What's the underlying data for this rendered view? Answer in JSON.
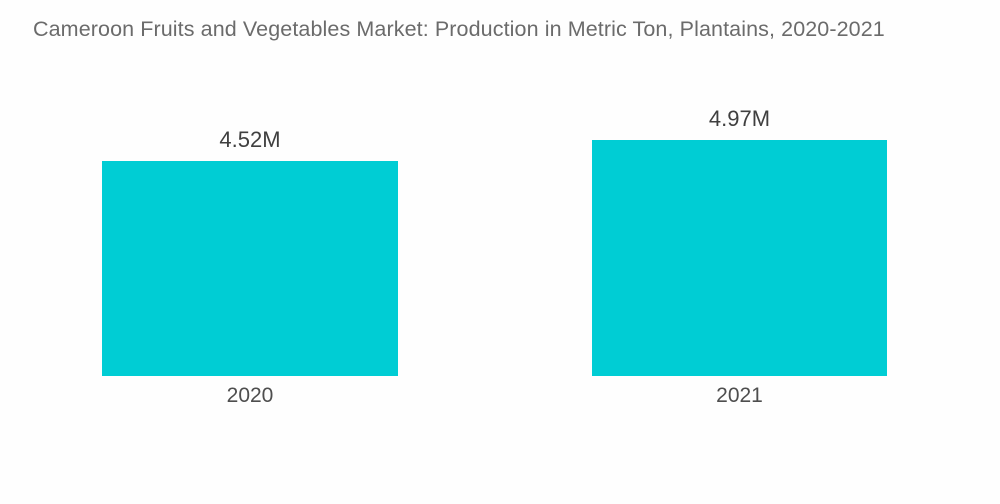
{
  "chart_data": {
    "type": "bar",
    "title": "Cameroon Fruits and Vegetables Market: Production in Metric Ton, Plantains, 2020-2021",
    "categories": [
      "2020",
      "2021"
    ],
    "values": [
      4.52,
      4.97
    ],
    "value_labels": [
      "4.52M",
      "4.97M"
    ],
    "xlabel": "",
    "ylabel": "",
    "ylim": [
      0,
      5
    ],
    "grid": false,
    "legend": "none",
    "colors": {
      "bar": "#00CDD4",
      "value_label_text": "#3F3F3F",
      "category_label_text": "#4E4E4E",
      "title_text": "#6B6B6B",
      "background": "#FEFEFE"
    }
  }
}
